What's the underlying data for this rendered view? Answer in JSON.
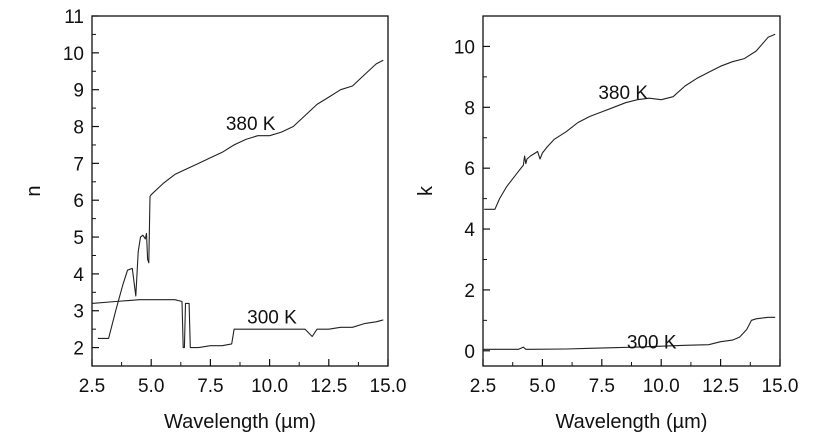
{
  "chart_data": [
    {
      "type": "line",
      "xlabel": "Wavelength (µm)",
      "ylabel": "n",
      "xlim": [
        2.5,
        15.0
      ],
      "ylim": [
        1.5,
        11.0
      ],
      "xticks": [
        2.5,
        5.0,
        7.5,
        10.0,
        12.5,
        15.0
      ],
      "xtick_labels": [
        "2.5",
        "5.0",
        "7.5",
        "10.0",
        "12.5",
        "15.0"
      ],
      "yticks": [
        2,
        3,
        4,
        5,
        6,
        7,
        8,
        9,
        10,
        11
      ],
      "ytick_labels": [
        "2",
        "3",
        "4",
        "5",
        "6",
        "7",
        "8",
        "9",
        "10",
        "11"
      ],
      "grid": false,
      "series": [
        {
          "label": "380 K",
          "x": [
            2.75,
            3.2,
            3.5,
            3.8,
            4.0,
            4.2,
            4.35,
            4.45,
            4.55,
            4.65,
            4.75,
            4.8,
            4.85,
            4.9,
            4.95,
            5.0,
            5.5,
            6.0,
            6.5,
            7.0,
            7.5,
            8.0,
            8.5,
            9.0,
            9.5,
            10.0,
            10.5,
            11.0,
            11.5,
            12.0,
            12.5,
            13.0,
            13.5,
            14.0,
            14.5,
            14.8
          ],
          "y": [
            2.25,
            2.25,
            3.0,
            3.7,
            4.1,
            4.15,
            3.4,
            4.6,
            5.0,
            5.05,
            4.95,
            5.1,
            4.4,
            4.3,
            6.1,
            6.15,
            6.45,
            6.7,
            6.85,
            7.0,
            7.15,
            7.3,
            7.5,
            7.65,
            7.75,
            7.75,
            7.85,
            8.0,
            8.3,
            8.6,
            8.8,
            9.0,
            9.1,
            9.4,
            9.7,
            9.8
          ]
        },
        {
          "label": "300 K",
          "x": [
            2.5,
            3.5,
            4.5,
            5.5,
            6.0,
            6.3,
            6.35,
            6.4,
            6.45,
            6.5,
            6.55,
            6.6,
            6.65,
            6.7,
            6.75,
            7.0,
            7.5,
            8.0,
            8.4,
            8.5,
            9.0,
            10.0,
            11.0,
            11.5,
            11.8,
            12.0,
            12.5,
            13.0,
            13.5,
            14.0,
            14.5,
            14.8
          ],
          "y": [
            3.2,
            3.25,
            3.3,
            3.3,
            3.3,
            3.25,
            2.0,
            2.0,
            3.2,
            3.2,
            3.2,
            3.2,
            2.0,
            2.0,
            2.0,
            2.0,
            2.05,
            2.05,
            2.1,
            2.5,
            2.5,
            2.5,
            2.5,
            2.5,
            2.3,
            2.5,
            2.5,
            2.55,
            2.55,
            2.65,
            2.7,
            2.75
          ]
        }
      ],
      "annotations": [
        {
          "text": "380 K",
          "x": 9.2,
          "y": 8.1
        },
        {
          "text": "300 K",
          "x": 10.1,
          "y": 2.85
        }
      ]
    },
    {
      "type": "line",
      "xlabel": "Wavelength (µm)",
      "ylabel": "k",
      "xlim": [
        2.5,
        15.0
      ],
      "ylim": [
        -0.5,
        11.0
      ],
      "xticks": [
        2.5,
        5.0,
        7.5,
        10.0,
        12.5,
        15.0
      ],
      "xtick_labels": [
        "2.5",
        "5.0",
        "7.5",
        "10.0",
        "12.5",
        "15.0"
      ],
      "yticks": [
        0,
        2,
        4,
        6,
        8,
        10
      ],
      "ytick_labels": [
        "0",
        "2",
        "4",
        "6",
        "8",
        "10"
      ],
      "grid": false,
      "series": [
        {
          "label": "380 K",
          "x": [
            2.55,
            3.0,
            3.2,
            3.5,
            4.0,
            4.2,
            4.25,
            4.3,
            4.35,
            4.5,
            4.7,
            4.8,
            4.9,
            4.95,
            5.0,
            5.2,
            5.5,
            6.0,
            6.5,
            7.0,
            7.5,
            8.0,
            8.5,
            9.0,
            9.5,
            10.0,
            10.5,
            11.0,
            11.5,
            12.0,
            12.5,
            13.0,
            13.5,
            14.0,
            14.5,
            14.8
          ],
          "y": [
            4.65,
            4.65,
            5.0,
            5.4,
            5.9,
            6.1,
            6.4,
            6.15,
            6.3,
            6.4,
            6.5,
            6.55,
            6.3,
            6.4,
            6.5,
            6.7,
            6.95,
            7.2,
            7.5,
            7.7,
            7.85,
            8.0,
            8.15,
            8.25,
            8.3,
            8.25,
            8.35,
            8.7,
            8.95,
            9.15,
            9.35,
            9.5,
            9.6,
            9.85,
            10.3,
            10.4
          ]
        },
        {
          "label": "300 K",
          "x": [
            2.5,
            4.0,
            4.2,
            4.3,
            4.5,
            6.0,
            7.0,
            8.0,
            9.0,
            10.0,
            11.0,
            12.0,
            12.5,
            13.0,
            13.3,
            13.6,
            13.8,
            14.0,
            14.5,
            14.8
          ],
          "y": [
            0.05,
            0.05,
            0.12,
            0.05,
            0.05,
            0.06,
            0.08,
            0.1,
            0.12,
            0.15,
            0.18,
            0.2,
            0.3,
            0.35,
            0.45,
            0.7,
            1.0,
            1.05,
            1.1,
            1.1
          ]
        }
      ],
      "annotations": [
        {
          "text": "380 K",
          "x": 8.4,
          "y": 8.5
        },
        {
          "text": "300 K",
          "x": 9.6,
          "y": 0.3
        }
      ]
    }
  ]
}
